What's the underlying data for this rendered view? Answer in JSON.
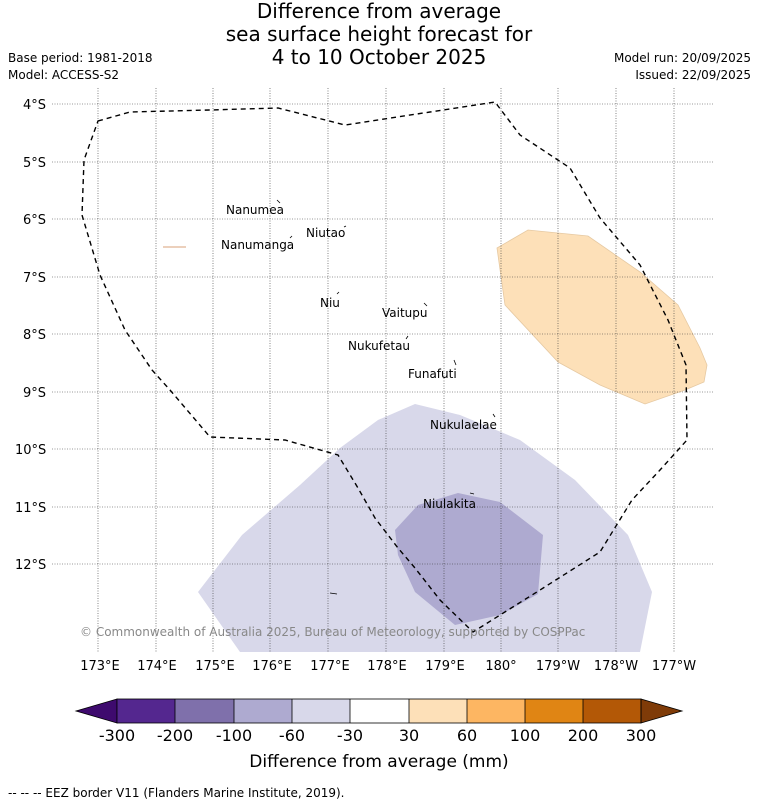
{
  "title": {
    "line1": "Difference from average",
    "line2": "sea surface height forecast for",
    "line3": "4 to 10 October 2025"
  },
  "meta": {
    "base_period": "Base period: 1981-2018",
    "model": "Model: ACCESS-S2",
    "model_run": "Model run: 20/09/2025",
    "issued": "Issued: 22/09/2025"
  },
  "map": {
    "lat_labels": [
      "4°S",
      "5°S",
      "6°S",
      "7°S",
      "8°S",
      "9°S",
      "10°S",
      "11°S",
      "12°S"
    ],
    "lon_labels": [
      "173°E",
      "174°E",
      "175°E",
      "176°E",
      "177°E",
      "178°E",
      "179°E",
      "180°",
      "179°W",
      "178°W",
      "177°W"
    ],
    "islands": [
      "Nanumea",
      "Nanumanga",
      "Niutao",
      "Niu",
      "Vaitupu",
      "Nukufetau",
      "Funafuti",
      "Nukulaelae",
      "Niulakita"
    ],
    "copyright": "© Commonwealth of Australia 2025, Bureau of Meteorology, supported by COSPPac",
    "colors": {
      "neg30_60": "#d8d8ea",
      "neg60_100": "#aeaad0",
      "pos30_60": "#fde0b8",
      "eez_line": "#000000"
    }
  },
  "colorbar": {
    "ticks": [
      "-300",
      "-200",
      "-100",
      "-60",
      "-30",
      "30",
      "60",
      "100",
      "200",
      "300"
    ],
    "colors": [
      "#3e0a6e",
      "#54278f",
      "#7f70ab",
      "#aeaad0",
      "#d8d8ea",
      "#ffffff",
      "#fde0b8",
      "#fdb662",
      "#e08514",
      "#b35806",
      "#7f3b08"
    ],
    "label": "Difference from average (mm)"
  },
  "footer": "-- -- -- EEZ border V11 (Flanders Marine Institute, 2019)."
}
